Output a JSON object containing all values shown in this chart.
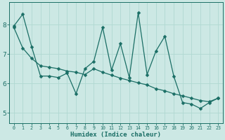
{
  "title": "",
  "xlabel": "Humidex (Indice chaleur)",
  "ylabel": "",
  "bg_color": "#cce8e4",
  "line_color": "#1a6e65",
  "grid_color": "#b0d8d2",
  "xlim": [
    -0.5,
    23.5
  ],
  "ylim": [
    4.65,
    8.75
  ],
  "xticks": [
    0,
    1,
    2,
    3,
    4,
    5,
    6,
    7,
    8,
    9,
    10,
    11,
    12,
    13,
    14,
    15,
    16,
    17,
    18,
    19,
    20,
    21,
    22,
    23
  ],
  "yticks": [
    5,
    6,
    7,
    8
  ],
  "jagged_x": [
    0,
    1,
    2,
    3,
    4,
    5,
    6,
    7,
    8,
    9,
    10,
    11,
    12,
    13,
    14,
    15,
    16,
    17,
    18,
    19,
    20,
    21,
    22,
    23
  ],
  "jagged_y": [
    7.95,
    8.35,
    7.25,
    6.25,
    6.25,
    6.2,
    6.35,
    5.65,
    6.5,
    6.75,
    7.9,
    6.45,
    7.35,
    6.2,
    8.4,
    6.3,
    7.1,
    7.6,
    6.25,
    5.35,
    5.3,
    5.15,
    5.35,
    5.5
  ],
  "trend_x": [
    0,
    1,
    2,
    3,
    4,
    5,
    6,
    7,
    8,
    9,
    10,
    11,
    12,
    13,
    14,
    15,
    16,
    17,
    18,
    19,
    20,
    21,
    22,
    23
  ],
  "trend_y": [
    7.9,
    7.2,
    6.85,
    6.6,
    6.55,
    6.5,
    6.42,
    6.38,
    6.3,
    6.5,
    6.38,
    6.28,
    6.18,
    6.1,
    6.02,
    5.95,
    5.82,
    5.75,
    5.65,
    5.58,
    5.5,
    5.42,
    5.38,
    5.5
  ]
}
